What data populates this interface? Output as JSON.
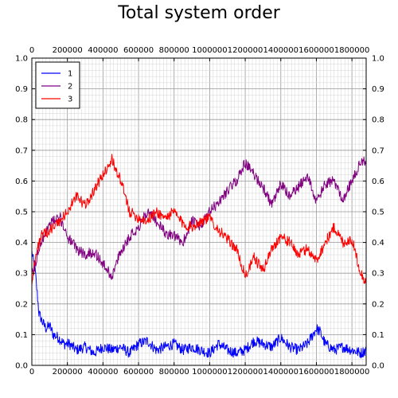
{
  "chart_data": {
    "type": "line",
    "title": "Total system order",
    "xlabel": "",
    "ylabel": "",
    "xlim": [
      0,
      1880000
    ],
    "ylim": [
      0.0,
      1.0
    ],
    "x_ticks": [
      "0",
      "200000",
      "400000",
      "600000",
      "800000",
      "1000000",
      "1200000",
      "1400000",
      "1600000",
      "1800000"
    ],
    "y_ticks": [
      "0.0",
      "0.1",
      "0.2",
      "0.3",
      "0.4",
      "0.5",
      "0.6",
      "0.7",
      "0.8",
      "0.9",
      "1.0"
    ],
    "grid": true,
    "legend_position": "top-left",
    "series": [
      {
        "name": "1",
        "color": "#0000ff",
        "x": [
          0,
          20000,
          40000,
          60000,
          80000,
          100000,
          120000,
          150000,
          180000,
          210000,
          250000,
          300000,
          350000,
          400000,
          450000,
          500000,
          550000,
          600000,
          650000,
          700000,
          750000,
          800000,
          850000,
          900000,
          950000,
          1000000,
          1050000,
          1100000,
          1150000,
          1200000,
          1250000,
          1300000,
          1350000,
          1400000,
          1450000,
          1500000,
          1550000,
          1580000,
          1600000,
          1620000,
          1650000,
          1700000,
          1750000,
          1800000,
          1850000,
          1880000
        ],
        "y": [
          0.37,
          0.3,
          0.17,
          0.14,
          0.12,
          0.13,
          0.1,
          0.09,
          0.07,
          0.07,
          0.05,
          0.06,
          0.04,
          0.06,
          0.05,
          0.06,
          0.04,
          0.07,
          0.08,
          0.05,
          0.06,
          0.07,
          0.05,
          0.06,
          0.05,
          0.04,
          0.07,
          0.05,
          0.04,
          0.05,
          0.08,
          0.07,
          0.06,
          0.09,
          0.06,
          0.05,
          0.07,
          0.1,
          0.12,
          0.11,
          0.07,
          0.05,
          0.06,
          0.05,
          0.04,
          0.05
        ]
      },
      {
        "name": "2",
        "color": "#800080",
        "x": [
          0,
          20000,
          50000,
          80000,
          120000,
          160000,
          200000,
          250000,
          300000,
          350000,
          400000,
          450000,
          500000,
          550000,
          600000,
          650000,
          700000,
          750000,
          800000,
          850000,
          900000,
          950000,
          1000000,
          1050000,
          1100000,
          1150000,
          1200000,
          1250000,
          1300000,
          1350000,
          1400000,
          1450000,
          1500000,
          1550000,
          1600000,
          1650000,
          1700000,
          1750000,
          1800000,
          1850000,
          1880000
        ],
        "y": [
          0.3,
          0.33,
          0.4,
          0.44,
          0.47,
          0.48,
          0.42,
          0.38,
          0.36,
          0.37,
          0.33,
          0.29,
          0.37,
          0.42,
          0.45,
          0.5,
          0.47,
          0.43,
          0.42,
          0.4,
          0.47,
          0.45,
          0.5,
          0.53,
          0.57,
          0.6,
          0.66,
          0.62,
          0.58,
          0.52,
          0.59,
          0.55,
          0.58,
          0.62,
          0.53,
          0.59,
          0.6,
          0.54,
          0.6,
          0.66,
          0.67
        ]
      },
      {
        "name": "3",
        "color": "#ff0000",
        "x": [
          0,
          20000,
          50000,
          80000,
          120000,
          160000,
          200000,
          250000,
          300000,
          350000,
          400000,
          450000,
          500000,
          550000,
          600000,
          650000,
          700000,
          750000,
          800000,
          850000,
          900000,
          950000,
          1000000,
          1050000,
          1100000,
          1150000,
          1200000,
          1250000,
          1300000,
          1350000,
          1400000,
          1450000,
          1500000,
          1550000,
          1600000,
          1650000,
          1700000,
          1750000,
          1800000,
          1850000,
          1880000
        ],
        "y": [
          0.27,
          0.35,
          0.42,
          0.43,
          0.45,
          0.47,
          0.5,
          0.55,
          0.52,
          0.57,
          0.62,
          0.67,
          0.6,
          0.5,
          0.48,
          0.47,
          0.5,
          0.48,
          0.5,
          0.46,
          0.45,
          0.47,
          0.48,
          0.44,
          0.41,
          0.38,
          0.29,
          0.35,
          0.31,
          0.38,
          0.42,
          0.4,
          0.36,
          0.38,
          0.34,
          0.4,
          0.45,
          0.4,
          0.41,
          0.3,
          0.27
        ]
      }
    ]
  }
}
